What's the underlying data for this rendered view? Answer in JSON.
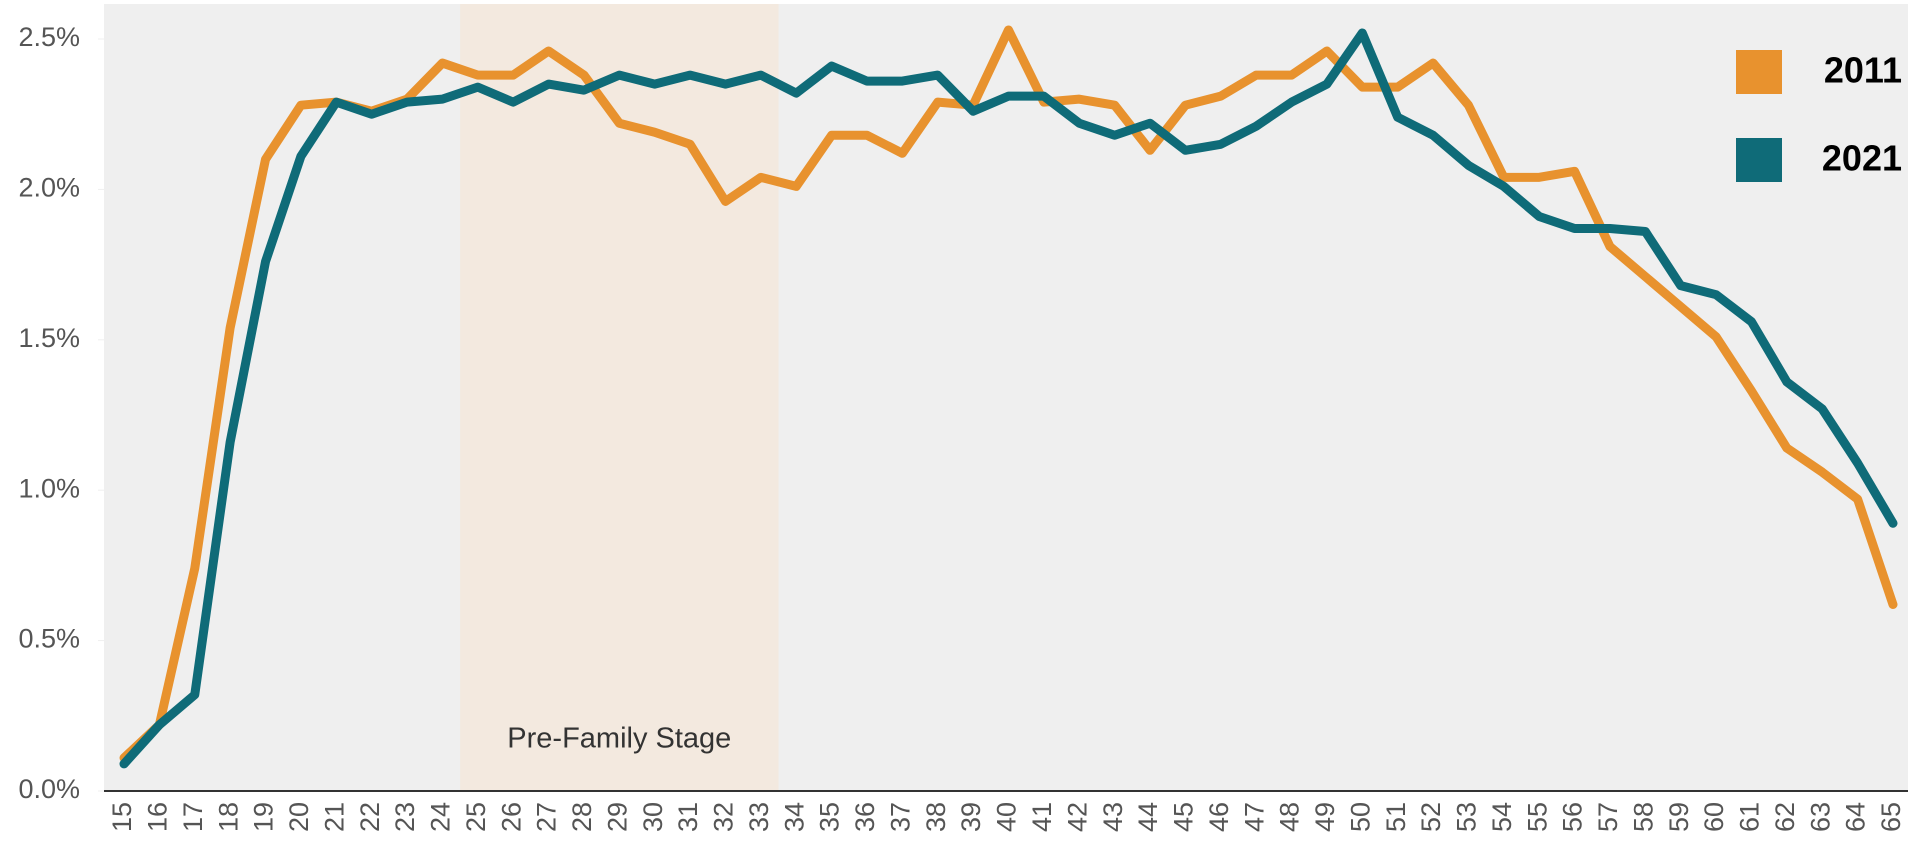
{
  "chart_data": {
    "type": "line",
    "categories": [
      "15",
      "16",
      "17",
      "18",
      "19",
      "20",
      "21",
      "22",
      "23",
      "24",
      "25",
      "26",
      "27",
      "28",
      "29",
      "30",
      "31",
      "32",
      "33",
      "34",
      "35",
      "36",
      "37",
      "38",
      "39",
      "40",
      "41",
      "42",
      "43",
      "44",
      "45",
      "46",
      "47",
      "48",
      "49",
      "50",
      "51",
      "52",
      "53",
      "54",
      "55",
      "56",
      "57",
      "58",
      "59",
      "60",
      "61",
      "62",
      "63",
      "64",
      "65"
    ],
    "series": [
      {
        "name": "2011",
        "color": "#e8922e",
        "values": [
          0.11,
          0.22,
          0.74,
          1.54,
          2.1,
          2.28,
          2.29,
          2.26,
          2.3,
          2.42,
          2.38,
          2.38,
          2.46,
          2.38,
          2.22,
          2.19,
          2.15,
          1.96,
          2.04,
          2.01,
          2.18,
          2.18,
          2.12,
          2.29,
          2.28,
          2.53,
          2.29,
          2.3,
          2.28,
          2.13,
          2.28,
          2.31,
          2.38,
          2.38,
          2.46,
          2.34,
          2.34,
          2.42,
          2.28,
          2.04,
          2.04,
          2.06,
          1.81,
          1.71,
          1.61,
          1.51,
          1.33,
          1.14,
          1.06,
          0.97,
          0.62
        ]
      },
      {
        "name": "2021",
        "color": "#0f6b78",
        "values": [
          0.09,
          0.22,
          0.32,
          1.16,
          1.76,
          2.11,
          2.29,
          2.25,
          2.29,
          2.3,
          2.34,
          2.29,
          2.35,
          2.33,
          2.38,
          2.35,
          2.38,
          2.35,
          2.38,
          2.32,
          2.41,
          2.36,
          2.36,
          2.38,
          2.26,
          2.31,
          2.31,
          2.22,
          2.18,
          2.22,
          2.13,
          2.15,
          2.21,
          2.29,
          2.35,
          2.52,
          2.24,
          2.18,
          2.08,
          2.01,
          1.91,
          1.87,
          1.87,
          1.86,
          1.68,
          1.65,
          1.56,
          1.36,
          1.27,
          1.09,
          0.89
        ]
      }
    ],
    "ylim": [
      0,
      2.5
    ],
    "yticks": [
      {
        "value": 0,
        "label": "0.0%"
      },
      {
        "value": 0.5,
        "label": "0.5%"
      },
      {
        "value": 1,
        "label": "1.0%"
      },
      {
        "value": 1.5,
        "label": "1.5%"
      },
      {
        "value": 2,
        "label": "2.0%"
      },
      {
        "value": 2.5,
        "label": "2.5%"
      }
    ],
    "highlight": {
      "from": "25",
      "to": "33",
      "label": "Pre-Family Stage"
    },
    "legend": "top-right"
  }
}
